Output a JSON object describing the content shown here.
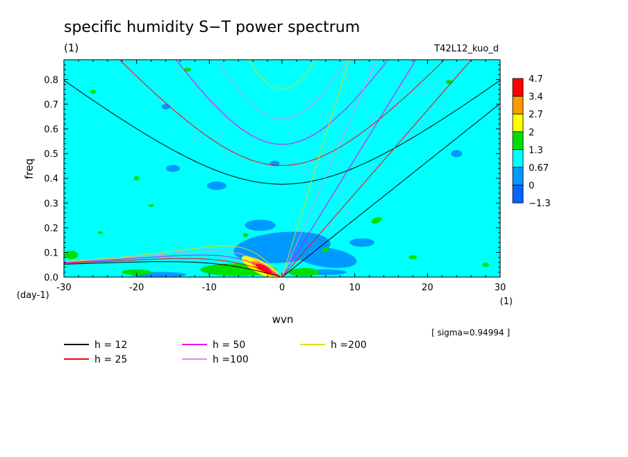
{
  "chart_data": {
    "type": "heatmap",
    "title": "specific humidity S−T power spectrum",
    "subtitle": "(1)",
    "experiment": "T42L12_kuo_d",
    "xlabel": "wvn",
    "xunit": "(1)",
    "ylabel": "freq",
    "yunit": "(day-1)",
    "xlim": [
      -30,
      30
    ],
    "ylim": [
      0,
      0.88
    ],
    "x_ticks": [
      "-30",
      "-20",
      "-10",
      "0",
      "10",
      "20",
      "30"
    ],
    "x_tick_values": [
      -30,
      -20,
      -10,
      0,
      10,
      20,
      30
    ],
    "y_ticks": [
      "0.0",
      "0.1",
      "0.2",
      "0.3",
      "0.4",
      "0.5",
      "0.6",
      "0.7",
      "0.8"
    ],
    "y_tick_values": [
      0,
      0.1,
      0.2,
      0.3,
      0.4,
      0.5,
      0.6,
      0.7,
      0.8
    ],
    "sigma_note": "[ sigma=0.94994 ]",
    "background_level_color": "#00ffff",
    "colorbar": {
      "labels": [
        "4.7",
        "3.4",
        "2.7",
        "2",
        "1.3",
        "0.67",
        "0",
        "−1.3"
      ],
      "colors": [
        "#ff0000",
        "#ff9900",
        "#ffff00",
        "#00e000",
        "#00ffff",
        "#0099ff",
        "#0066ff"
      ]
    },
    "dispersion_curves": [
      {
        "label": "h = 12",
        "h": 12,
        "color": "#000000"
      },
      {
        "label": "h = 25",
        "h": 25,
        "color": "#ff0000"
      },
      {
        "label": "h = 50",
        "h": 50,
        "color": "#ee00ee"
      },
      {
        "label": "h =100",
        "h": 100,
        "color": "#d890ea"
      },
      {
        "label": "h =200",
        "h": 200,
        "color": "#e6d800"
      }
    ]
  }
}
